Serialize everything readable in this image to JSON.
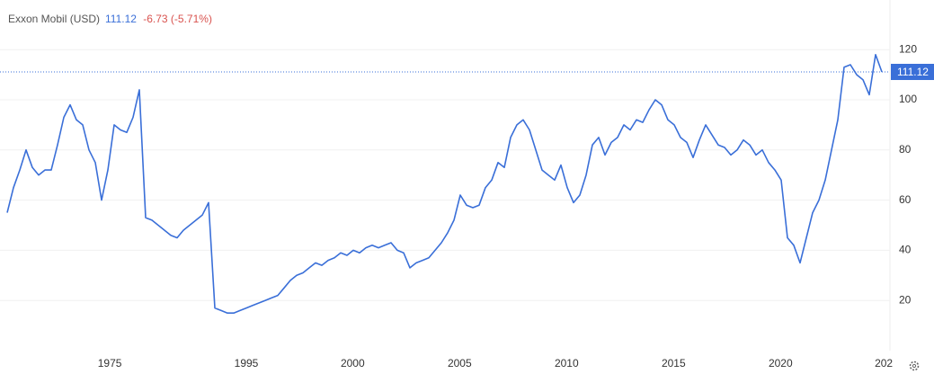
{
  "chart_data": {
    "type": "line",
    "title": "Exxon Mobil (USD)",
    "last_price": 111.12,
    "change_label": "-6.73 (-5.71%)",
    "series": [
      {
        "name": "Exxon Mobil (USD)",
        "color": "#3a6fd8",
        "values": [
          55,
          65,
          72,
          80,
          73,
          70,
          72,
          72,
          82,
          93,
          98,
          92,
          90,
          80,
          75,
          60,
          72,
          90,
          88,
          87,
          93,
          104,
          53,
          52,
          50,
          48,
          46,
          45,
          48,
          50,
          52,
          54,
          59,
          17,
          16,
          15,
          15,
          16,
          17,
          18,
          19,
          20,
          21,
          22,
          25,
          28,
          30,
          31,
          33,
          35,
          34,
          36,
          37,
          39,
          38,
          40,
          39,
          41,
          42,
          41,
          42,
          43,
          40,
          39,
          33,
          35,
          36,
          37,
          40,
          43,
          47,
          52,
          62,
          58,
          57,
          58,
          65,
          68,
          75,
          73,
          85,
          90,
          92,
          88,
          80,
          72,
          70,
          68,
          74,
          65,
          59,
          62,
          70,
          82,
          85,
          78,
          83,
          85,
          90,
          88,
          92,
          91,
          96,
          100,
          98,
          92,
          90,
          85,
          83,
          77,
          84,
          90,
          86,
          82,
          81,
          78,
          80,
          84,
          82,
          78,
          80,
          75,
          72,
          68,
          45,
          42,
          35,
          45,
          55,
          60,
          68,
          80,
          92,
          113,
          114,
          110,
          108,
          102,
          118,
          111.12
        ]
      }
    ],
    "xlim": [
      0,
      139
    ],
    "xticks": [
      {
        "value": 16.3,
        "label": "1975"
      },
      {
        "value": 38,
        "label": "1995"
      },
      {
        "value": 54.9,
        "label": "2000"
      },
      {
        "value": 71.9,
        "label": "2005"
      },
      {
        "value": 88.9,
        "label": "2010"
      },
      {
        "value": 105.9,
        "label": "2015"
      },
      {
        "value": 122.9,
        "label": "2020"
      },
      {
        "value": 139.3,
        "label": "202"
      }
    ],
    "ylim": [
      0,
      138
    ],
    "yticks": [
      20,
      40,
      60,
      80,
      100,
      120
    ],
    "grid": true
  }
}
